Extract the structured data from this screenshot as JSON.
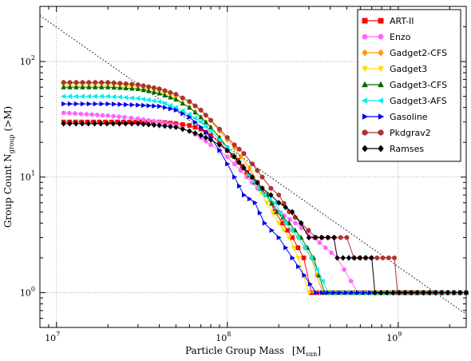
{
  "chart_data": {
    "type": "line",
    "title": "",
    "xlabel": "Particle Group Mass",
    "xlabel_unit": "[M",
    "xlabel_unit_sub": "sun",
    "xlabel_unit_close": "]",
    "ylabel": "Group Count N",
    "ylabel_sub": "group",
    "ylabel_tail": " (>M)",
    "x_scale": "log",
    "y_scale": "log",
    "xlim": [
      8000000,
      2500000000
    ],
    "ylim": [
      0.5,
      300
    ],
    "x_ticks": [
      {
        "value": 10000000,
        "base": "10",
        "exp": "7"
      },
      {
        "value": 100000000,
        "base": "10",
        "exp": "8"
      },
      {
        "value": 1000000000,
        "base": "10",
        "exp": "9"
      }
    ],
    "y_ticks": [
      {
        "value": 1,
        "base": "10",
        "exp": "0"
      },
      {
        "value": 10,
        "base": "10",
        "exp": "1"
      },
      {
        "value": 100,
        "base": "10",
        "exp": "2"
      }
    ],
    "grid": true,
    "legend_position": "top-right",
    "reference_line": {
      "style": "dotted",
      "points": [
        [
          8000000,
          250
        ],
        [
          2500000000,
          0.65
        ]
      ]
    },
    "series": [
      {
        "name": "ART-II",
        "color": "#ff0000",
        "marker": "square",
        "points": [
          [
            11000000,
            30
          ],
          [
            40000000,
            30
          ],
          [
            50000000,
            29
          ],
          [
            60000000,
            28
          ],
          [
            70000000,
            26
          ],
          [
            80000000,
            23
          ],
          [
            90000000,
            20
          ],
          [
            100000000,
            17
          ],
          [
            115000000,
            14
          ],
          [
            130000000,
            11
          ],
          [
            150000000,
            9
          ],
          [
            170000000,
            7
          ],
          [
            190000000,
            5
          ],
          [
            210000000,
            4
          ],
          [
            240000000,
            3
          ],
          [
            280000000,
            2
          ],
          [
            310000000,
            1
          ],
          [
            2500000000,
            1
          ]
        ]
      },
      {
        "name": "Enzo",
        "color": "#ff66ff",
        "marker": "circle",
        "points": [
          [
            11000000,
            36
          ],
          [
            15000000,
            35
          ],
          [
            20000000,
            34
          ],
          [
            25000000,
            33
          ],
          [
            30000000,
            32
          ],
          [
            40000000,
            30
          ],
          [
            50000000,
            28
          ],
          [
            60000000,
            25
          ],
          [
            70000000,
            22
          ],
          [
            80000000,
            19
          ],
          [
            90000000,
            17
          ],
          [
            100000000,
            15
          ],
          [
            110000000,
            13
          ],
          [
            130000000,
            10
          ],
          [
            150000000,
            8
          ],
          [
            170000000,
            7
          ],
          [
            200000000,
            5
          ],
          [
            250000000,
            4
          ],
          [
            320000000,
            3
          ],
          [
            440000000,
            2
          ],
          [
            580000000,
            1
          ],
          [
            2500000000,
            1
          ]
        ]
      },
      {
        "name": "Gadget2-CFS",
        "color": "#ff9900",
        "marker": "diamond",
        "points": [
          [
            11000000,
            65
          ],
          [
            20000000,
            65
          ],
          [
            30000000,
            63
          ],
          [
            40000000,
            58
          ],
          [
            50000000,
            52
          ],
          [
            60000000,
            45
          ],
          [
            70000000,
            38
          ],
          [
            80000000,
            31
          ],
          [
            90000000,
            25
          ],
          [
            100000000,
            21
          ],
          [
            110000000,
            18
          ],
          [
            120000000,
            15
          ],
          [
            135000000,
            12
          ],
          [
            150000000,
            9
          ],
          [
            170000000,
            7
          ],
          [
            195000000,
            5
          ],
          [
            220000000,
            4
          ],
          [
            260000000,
            3
          ],
          [
            310000000,
            2
          ],
          [
            360000000,
            1
          ],
          [
            2500000000,
            1
          ]
        ]
      },
      {
        "name": "Gadget3",
        "color": "#ffdd00",
        "marker": "triangle-down",
        "points": [
          [
            11000000,
            62
          ],
          [
            20000000,
            62
          ],
          [
            30000000,
            60
          ],
          [
            40000000,
            55
          ],
          [
            50000000,
            48
          ],
          [
            60000000,
            40
          ],
          [
            70000000,
            33
          ],
          [
            80000000,
            27
          ],
          [
            90000000,
            22
          ],
          [
            100000000,
            18
          ],
          [
            110000000,
            15
          ],
          [
            125000000,
            12
          ],
          [
            145000000,
            9
          ],
          [
            170000000,
            6
          ],
          [
            200000000,
            4
          ],
          [
            230000000,
            3
          ],
          [
            260000000,
            2
          ],
          [
            300000000,
            1
          ],
          [
            2500000000,
            1
          ]
        ]
      },
      {
        "name": "Gadget3-CFS",
        "color": "#006600",
        "marker": "triangle-up",
        "points": [
          [
            11000000,
            60
          ],
          [
            20000000,
            60
          ],
          [
            30000000,
            58
          ],
          [
            40000000,
            53
          ],
          [
            50000000,
            47
          ],
          [
            60000000,
            40
          ],
          [
            70000000,
            33
          ],
          [
            80000000,
            27
          ],
          [
            90000000,
            22
          ],
          [
            100000000,
            18
          ],
          [
            110000000,
            15
          ],
          [
            125000000,
            12
          ],
          [
            145000000,
            9
          ],
          [
            170000000,
            7
          ],
          [
            195000000,
            5
          ],
          [
            230000000,
            4
          ],
          [
            270000000,
            3
          ],
          [
            320000000,
            2
          ],
          [
            370000000,
            1
          ],
          [
            2500000000,
            1
          ]
        ]
      },
      {
        "name": "Gadget3-AFS",
        "color": "#00eeee",
        "marker": "triangle-left",
        "points": [
          [
            11000000,
            50
          ],
          [
            20000000,
            50
          ],
          [
            30000000,
            48
          ],
          [
            40000000,
            45
          ],
          [
            50000000,
            40
          ],
          [
            60000000,
            35
          ],
          [
            70000000,
            30
          ],
          [
            80000000,
            25
          ],
          [
            90000000,
            21
          ],
          [
            100000000,
            18
          ],
          [
            110000000,
            15
          ],
          [
            125000000,
            12
          ],
          [
            145000000,
            9
          ],
          [
            165000000,
            7
          ],
          [
            190000000,
            6
          ],
          [
            220000000,
            4
          ],
          [
            260000000,
            3
          ],
          [
            310000000,
            2
          ],
          [
            390000000,
            1
          ],
          [
            2500000000,
            1
          ]
        ]
      },
      {
        "name": "Gasoline",
        "color": "#0000ee",
        "marker": "triangle-right",
        "points": [
          [
            11000000,
            43
          ],
          [
            20000000,
            43
          ],
          [
            30000000,
            42
          ],
          [
            40000000,
            41
          ],
          [
            50000000,
            38
          ],
          [
            60000000,
            33
          ],
          [
            70000000,
            27
          ],
          [
            80000000,
            22
          ],
          [
            90000000,
            17
          ],
          [
            100000000,
            13
          ],
          [
            110000000,
            10
          ],
          [
            125000000,
            7
          ],
          [
            145000000,
            6
          ],
          [
            165000000,
            4
          ],
          [
            200000000,
            3
          ],
          [
            240000000,
            2
          ],
          [
            330000000,
            1
          ],
          [
            2500000000,
            1
          ]
        ]
      },
      {
        "name": "Pkdgrav2",
        "color": "#aa3333",
        "marker": "hexagon",
        "points": [
          [
            11000000,
            66
          ],
          [
            20000000,
            66
          ],
          [
            30000000,
            63
          ],
          [
            40000000,
            58
          ],
          [
            50000000,
            52
          ],
          [
            60000000,
            45
          ],
          [
            70000000,
            38
          ],
          [
            80000000,
            31
          ],
          [
            90000000,
            26
          ],
          [
            100000000,
            22
          ],
          [
            110000000,
            19
          ],
          [
            125000000,
            16
          ],
          [
            140000000,
            13
          ],
          [
            160000000,
            10
          ],
          [
            180000000,
            8
          ],
          [
            200000000,
            7
          ],
          [
            230000000,
            5
          ],
          [
            270000000,
            4
          ],
          [
            330000000,
            3
          ],
          [
            500000000,
            3
          ],
          [
            550000000,
            2
          ],
          [
            950000000,
            2
          ],
          [
            990000000,
            1
          ],
          [
            2500000000,
            1
          ]
        ]
      },
      {
        "name": "Ramses",
        "color": "#000000",
        "marker": "diamond",
        "points": [
          [
            11000000,
            29
          ],
          [
            30000000,
            29
          ],
          [
            40000000,
            28
          ],
          [
            50000000,
            27
          ],
          [
            60000000,
            25
          ],
          [
            70000000,
            23
          ],
          [
            80000000,
            21
          ],
          [
            90000000,
            19
          ],
          [
            100000000,
            17
          ],
          [
            110000000,
            15
          ],
          [
            125000000,
            12
          ],
          [
            140000000,
            10
          ],
          [
            160000000,
            8
          ],
          [
            180000000,
            7
          ],
          [
            200000000,
            6
          ],
          [
            240000000,
            5
          ],
          [
            270000000,
            4
          ],
          [
            300000000,
            3
          ],
          [
            420000000,
            3
          ],
          [
            440000000,
            2
          ],
          [
            700000000,
            2
          ],
          [
            730000000,
            1
          ],
          [
            2500000000,
            1
          ]
        ]
      }
    ]
  }
}
